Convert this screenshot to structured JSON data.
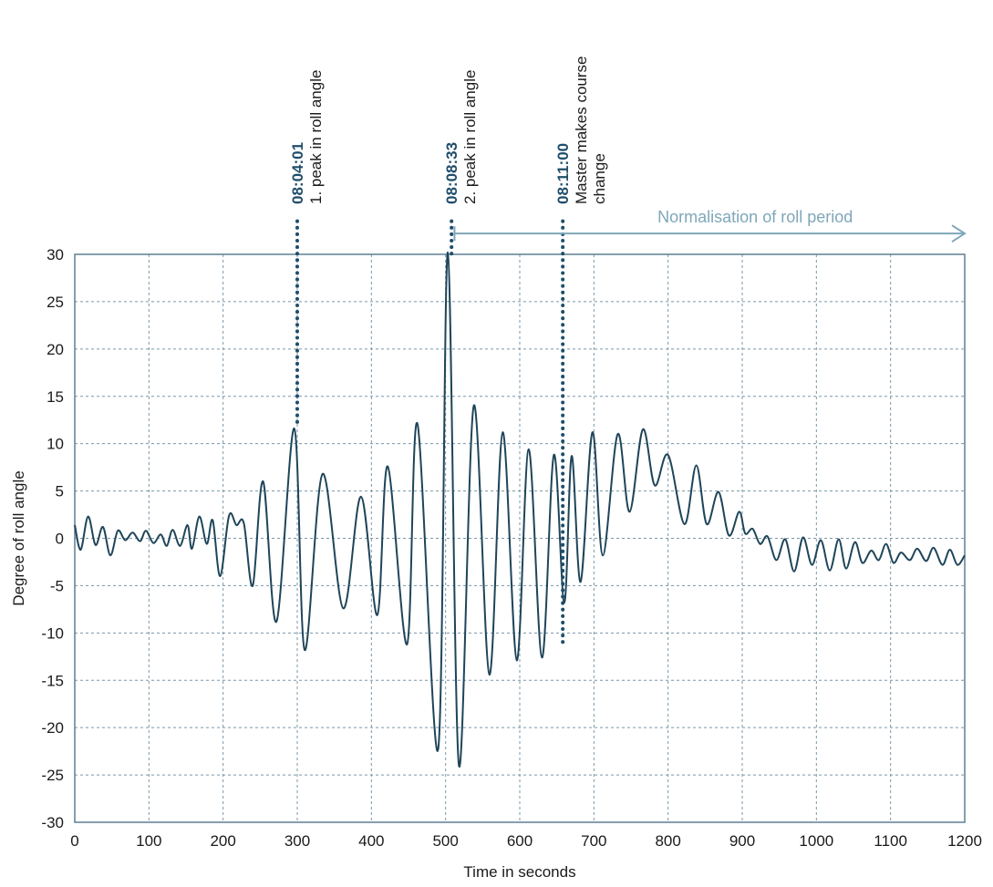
{
  "chart_data": {
    "type": "line",
    "title": "",
    "xlabel": "Time in seconds",
    "ylabel": "Degree of roll angle",
    "xlim": [
      0,
      1200
    ],
    "ylim": [
      -30,
      30
    ],
    "x_ticks": [
      0,
      100,
      200,
      300,
      400,
      500,
      600,
      700,
      800,
      900,
      1000,
      1100,
      1200
    ],
    "y_ticks": [
      -30,
      -25,
      -20,
      -15,
      -10,
      -5,
      0,
      5,
      10,
      15,
      20,
      25,
      30
    ],
    "grid": true,
    "line_color": "#1f4559",
    "series": [
      {
        "points": [
          [
            0,
            1.4
          ],
          [
            8,
            -1.2
          ],
          [
            18,
            2.3
          ],
          [
            28,
            -0.7
          ],
          [
            38,
            1.2
          ],
          [
            48,
            -1.8
          ],
          [
            58,
            0.8
          ],
          [
            68,
            -0.2
          ],
          [
            78,
            0.6
          ],
          [
            88,
            -0.3
          ],
          [
            96,
            0.8
          ],
          [
            106,
            -0.5
          ],
          [
            116,
            0.4
          ],
          [
            124,
            -0.8
          ],
          [
            132,
            0.9
          ],
          [
            142,
            -0.8
          ],
          [
            152,
            1.4
          ],
          [
            158,
            -1.1
          ],
          [
            168,
            2.3
          ],
          [
            178,
            -0.6
          ],
          [
            186,
            1.9
          ],
          [
            196,
            -4
          ],
          [
            208,
            2.4
          ],
          [
            218,
            1.4
          ],
          [
            228,
            1.6
          ],
          [
            240,
            -5
          ],
          [
            254,
            6
          ],
          [
            272,
            -8.8
          ],
          [
            296,
            11.6
          ],
          [
            310,
            -11.8
          ],
          [
            334,
            6.8
          ],
          [
            362,
            -7.4
          ],
          [
            386,
            4.4
          ],
          [
            408,
            -8.1
          ],
          [
            422,
            7.6
          ],
          [
            448,
            -11.2
          ],
          [
            462,
            12.1
          ],
          [
            490,
            -22.3
          ],
          [
            503,
            30.2
          ],
          [
            518,
            -24
          ],
          [
            538,
            14
          ],
          [
            559,
            -14.4
          ],
          [
            577,
            11.2
          ],
          [
            596,
            -12.9
          ],
          [
            612,
            9.4
          ],
          [
            630,
            -12.6
          ],
          [
            646,
            8.8
          ],
          [
            660,
            -6.8
          ],
          [
            670,
            8.7
          ],
          [
            682,
            -4.6
          ],
          [
            698,
            11.2
          ],
          [
            712,
            -1.8
          ],
          [
            732,
            11
          ],
          [
            748,
            2.8
          ],
          [
            766,
            11.5
          ],
          [
            782,
            5.6
          ],
          [
            800,
            8.8
          ],
          [
            822,
            1.5
          ],
          [
            838,
            7.7
          ],
          [
            852,
            1.5
          ],
          [
            868,
            4.9
          ],
          [
            882,
            0.3
          ],
          [
            896,
            2.8
          ],
          [
            904,
            0.5
          ],
          [
            914,
            1
          ],
          [
            924,
            -0.6
          ],
          [
            934,
            0.2
          ],
          [
            946,
            -2.3
          ],
          [
            958,
            -0.1
          ],
          [
            970,
            -3.5
          ],
          [
            982,
            0.1
          ],
          [
            994,
            -2.8
          ],
          [
            1006,
            -0.2
          ],
          [
            1018,
            -3.4
          ],
          [
            1030,
            -0.1
          ],
          [
            1040,
            -3.2
          ],
          [
            1052,
            -0.4
          ],
          [
            1062,
            -2.6
          ],
          [
            1074,
            -1.3
          ],
          [
            1084,
            -2.3
          ],
          [
            1094,
            -0.6
          ],
          [
            1104,
            -2.6
          ],
          [
            1114,
            -1.5
          ],
          [
            1126,
            -2.3
          ],
          [
            1136,
            -1.1
          ],
          [
            1148,
            -2.4
          ],
          [
            1158,
            -1
          ],
          [
            1170,
            -2.8
          ],
          [
            1180,
            -1.2
          ],
          [
            1190,
            -2.8
          ],
          [
            1200,
            -1.8
          ]
        ]
      }
    ],
    "annotations": [
      {
        "x": 300,
        "y_top": 33.5,
        "y_bottom": 12,
        "time": "08:04:01",
        "lines": [
          "1. peak in roll angle"
        ]
      },
      {
        "x": 508,
        "y_top": 33.5,
        "y_bottom": 30,
        "time": "08:08:33",
        "lines": [
          "2. peak in roll angle"
        ]
      },
      {
        "x": 658,
        "y_top": 33.5,
        "y_bottom": -11,
        "time": "08:11:00",
        "lines": [
          "Master makes course",
          "change"
        ]
      }
    ],
    "range_annotation": {
      "x_start": 512,
      "x_end": 1200,
      "y": 32.2,
      "label": "Normalisation of roll period",
      "color": "#7fa7b8"
    }
  }
}
